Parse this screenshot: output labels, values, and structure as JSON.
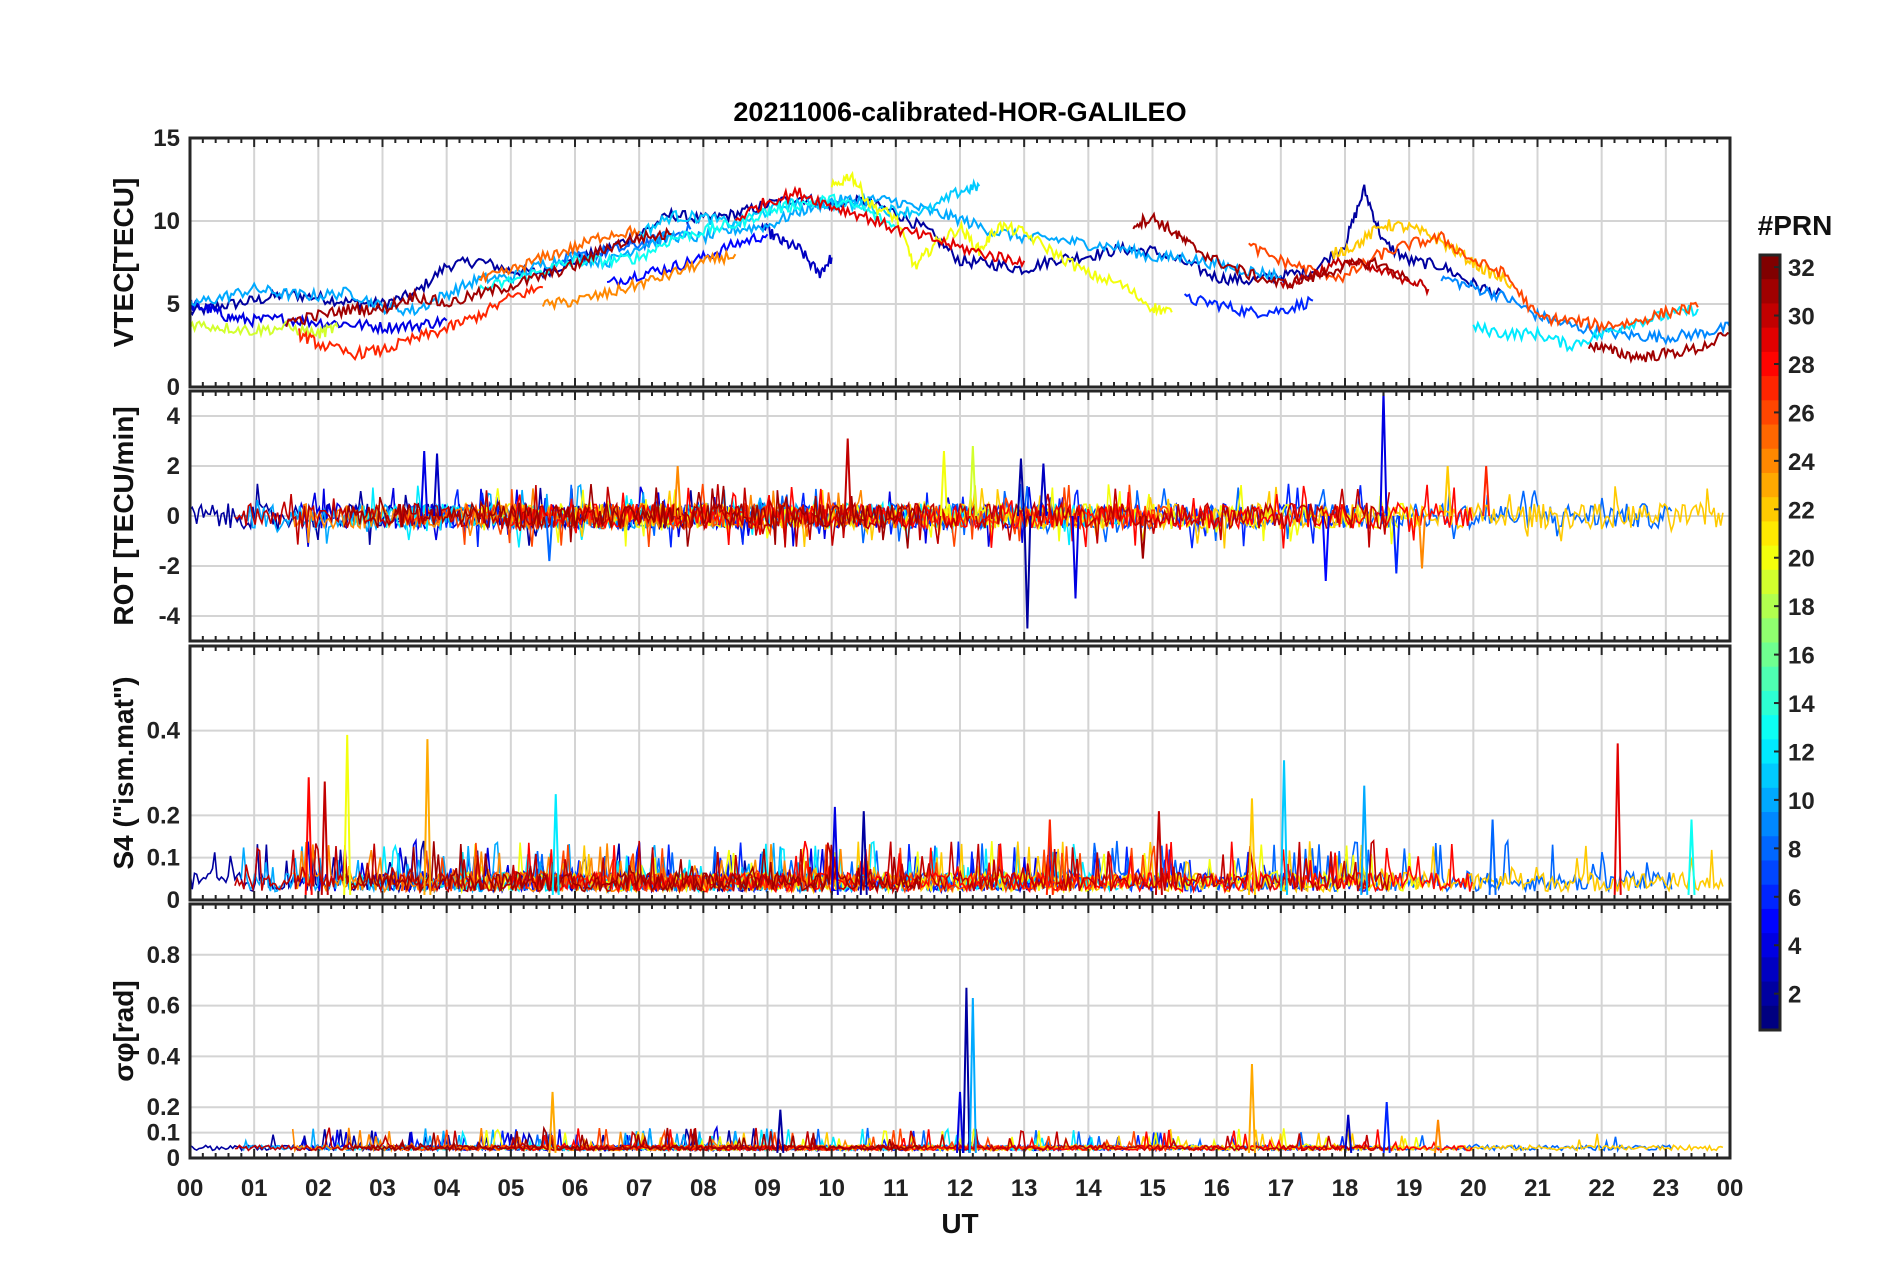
{
  "chart_data": {
    "type": "line",
    "title": "20211006-calibrated-HOR-GALILEO",
    "xlabel": "UT",
    "x_tick_labels": [
      "00",
      "01",
      "02",
      "03",
      "04",
      "05",
      "06",
      "07",
      "08",
      "09",
      "10",
      "11",
      "12",
      "13",
      "14",
      "15",
      "16",
      "17",
      "18",
      "19",
      "20",
      "21",
      "22",
      "23",
      "00"
    ],
    "xlim": [
      0,
      24
    ],
    "colorbar": {
      "title": "#PRN",
      "range": [
        1,
        32
      ],
      "tick_labels": [
        "2",
        "4",
        "6",
        "8",
        "10",
        "12",
        "14",
        "16",
        "18",
        "20",
        "22",
        "24",
        "26",
        "28",
        "30",
        "32"
      ],
      "colormap": "jet"
    },
    "panels": [
      {
        "ylabel": "VTEC[TECU]",
        "ylim": [
          0,
          15
        ],
        "ytick_labels": [
          "0",
          "5",
          "10",
          "15"
        ],
        "grid": true,
        "series": [
          {
            "prn": 2,
            "x": [
              0,
              0.5,
              1,
              1.5,
              2,
              2.5,
              3,
              3.5,
              4,
              4.5,
              5,
              5.5,
              6,
              6.5,
              7,
              7.5,
              8,
              8.5,
              9,
              9.5,
              10,
              10.5,
              11,
              11.5,
              12,
              12.5,
              13,
              13.5,
              14,
              14.5,
              15,
              15.5,
              16,
              16.5,
              17,
              17.5,
              18,
              18.3,
              18.6,
              19,
              19.5,
              20,
              20.5
            ],
            "y": [
              4.5,
              4.9,
              5.2,
              5.6,
              5.4,
              5.1,
              5.0,
              5.6,
              7.3,
              7.6,
              7.0,
              6.9,
              7.6,
              8.3,
              9.2,
              10.4,
              10.1,
              10.4,
              11.0,
              11.4,
              11.0,
              11.2,
              10.5,
              9.4,
              7.6,
              7.4,
              7.1,
              7.7,
              7.9,
              8.3,
              8.2,
              7.5,
              6.6,
              6.4,
              6.7,
              7.0,
              8.6,
              11.9,
              8.7,
              7.6,
              7.3,
              6.2,
              5.4
            ]
          },
          {
            "prn": 3,
            "x": [
              8.9,
              9.2,
              9.5,
              9.8,
              10.0
            ],
            "y": [
              9.7,
              8.8,
              8.3,
              6.8,
              7.8
            ]
          },
          {
            "prn": 4,
            "x": [
              0,
              0.3,
              0.6,
              1,
              1.5,
              2,
              2.5,
              3,
              3.5,
              4
            ],
            "y": [
              4.9,
              4.7,
              4.2,
              4.0,
              4.1,
              3.9,
              3.8,
              3.6,
              3.7,
              4.0
            ]
          },
          {
            "prn": 5,
            "x": [
              6.5,
              7,
              7.5,
              8,
              8.5,
              9
            ],
            "y": [
              6.2,
              6.8,
              7.2,
              7.8,
              8.6,
              9.2
            ]
          },
          {
            "prn": 6,
            "x": [
              15.5,
              16,
              16.5,
              17,
              17.5
            ],
            "y": [
              5.3,
              5.0,
              4.5,
              4.6,
              5.2
            ]
          },
          {
            "prn": 8,
            "x": [
              5.8,
              6.3,
              6.8,
              7.3,
              7.8
            ],
            "y": [
              7.7,
              8.0,
              8.4,
              8.9,
              9.5
            ]
          },
          {
            "prn": 9,
            "x": [
              19.5,
              20,
              20.5,
              21,
              21.5,
              22,
              22.5,
              23,
              23.5,
              24
            ],
            "y": [
              6.6,
              6.0,
              5.4,
              4.3,
              3.7,
              3.3,
              3.1,
              3.0,
              3.2,
              3.6
            ]
          },
          {
            "prn": 10,
            "x": [
              0,
              0.5,
              1,
              1.5,
              2,
              2.5,
              3,
              3.5,
              4,
              4.5,
              5,
              5.5,
              6,
              6.5,
              7,
              7.5,
              8,
              8.5,
              9,
              9.5,
              10,
              10.5,
              11,
              11.5,
              12,
              12.5,
              13,
              13.5,
              14,
              14.5,
              15,
              15.5,
              16,
              16.5,
              17
            ],
            "y": [
              5.0,
              5.4,
              5.9,
              5.6,
              5.5,
              5.7,
              4.8,
              4.6,
              5.6,
              6.5,
              6.6,
              7.4,
              7.8,
              7.5,
              8.5,
              9.1,
              9.0,
              9.5,
              9.7,
              10.6,
              11.2,
              11.3,
              11.2,
              10.6,
              10.1,
              9.4,
              9.0,
              8.9,
              8.6,
              8.4,
              7.8,
              7.8,
              7.4,
              7.0,
              6.7
            ]
          },
          {
            "prn": 11,
            "x": [
              7,
              7.5,
              8,
              8.5,
              9,
              9.5,
              10,
              10.5,
              11,
              11.5,
              12,
              12.3
            ],
            "y": [
              9.2,
              10.3,
              10.2,
              9.8,
              10.6,
              11.2,
              11.0,
              10.9,
              10.6,
              10.6,
              11.8,
              12.1
            ]
          },
          {
            "prn": 12,
            "x": [
              20,
              20.5,
              21,
              21.5,
              22,
              22.5,
              23,
              23.5
            ],
            "y": [
              3.6,
              3.2,
              3.2,
              2.5,
              3.2,
              3.9,
              4.3,
              4.7
            ]
          },
          {
            "prn": 13,
            "x": [
              4.5,
              5,
              5.5,
              6,
              6.5,
              7,
              7.5,
              8,
              8.5,
              9,
              9.5,
              10,
              10.5,
              11
            ],
            "y": [
              5.8,
              6.4,
              7.0,
              7.6,
              7.6,
              7.8,
              8.9,
              9.4,
              9.8,
              10.6,
              11.0,
              11.3,
              10.7,
              9.6
            ]
          },
          {
            "prn": 19,
            "x": [
              0,
              0.5,
              1,
              1.5,
              2,
              2.3
            ],
            "y": [
              3.8,
              3.6,
              3.4,
              3.6,
              3.2,
              3.6
            ]
          },
          {
            "prn": 20,
            "x": [
              10,
              10.3,
              10.6,
              11,
              11.3,
              11.6,
              12,
              12.3,
              12.6,
              13,
              13.5,
              14,
              14.5,
              15,
              15.3
            ],
            "y": [
              12.0,
              12.8,
              11.0,
              10.2,
              7.2,
              8.6,
              9.6,
              8.2,
              9.7,
              9.3,
              8.0,
              6.8,
              6.2,
              4.8,
              4.5
            ]
          },
          {
            "prn": 22,
            "x": [
              17.8,
              18.2,
              18.6,
              19,
              19.4,
              19.8,
              20.2,
              20.6
            ],
            "y": [
              8.0,
              8.6,
              9.8,
              9.6,
              9.0,
              8.0,
              7.0,
              6.2
            ]
          },
          {
            "prn": 24,
            "x": [
              5.5,
              6,
              6.5,
              7,
              7.5,
              8,
              8.5
            ],
            "y": [
              4.9,
              5.2,
              5.6,
              6.2,
              6.8,
              7.5,
              8.0
            ]
          },
          {
            "prn": 25,
            "x": [
              4.5,
              5,
              5.5,
              6,
              6.5,
              7
            ],
            "y": [
              6.4,
              7.0,
              7.8,
              8.4,
              9.2,
              9.4
            ]
          },
          {
            "prn": 26,
            "x": [
              16.5,
              17,
              17.5,
              18,
              18.5,
              19,
              19.5,
              20,
              20.5,
              21,
              21.5,
              22,
              22.5,
              23,
              23.5
            ],
            "y": [
              8.5,
              7.6,
              7.0,
              6.6,
              7.9,
              8.6,
              9.0,
              7.6,
              6.8,
              4.2,
              4.0,
              3.7,
              3.9,
              4.5,
              4.8
            ]
          },
          {
            "prn": 27,
            "x": [
              1.7,
              2,
              2.5,
              3,
              3.5,
              4,
              4.5,
              5,
              5.5
            ],
            "y": [
              3.2,
              2.6,
              2.0,
              2.2,
              2.9,
              3.5,
              4.3,
              5.4,
              6.0
            ]
          },
          {
            "prn": 29,
            "x": [
              8.5,
              9,
              9.5,
              10,
              10.5,
              11,
              11.5,
              12,
              12.5,
              13
            ],
            "y": [
              10.1,
              11.2,
              11.7,
              10.9,
              10.3,
              9.5,
              9.0,
              8.4,
              7.9,
              7.6
            ]
          },
          {
            "prn": 30,
            "x": [
              17,
              17.5,
              18,
              18.5,
              19,
              19.3
            ],
            "y": [
              6.0,
              6.8,
              7.6,
              7.0,
              6.5,
              5.9
            ]
          },
          {
            "prn": 31,
            "x": [
              1.5,
              2,
              2.5,
              3,
              3.5,
              4,
              4.5,
              5,
              5.5,
              6,
              6.5,
              7,
              7.5
            ],
            "y": [
              3.9,
              4.3,
              4.7,
              4.7,
              5.5,
              5.0,
              5.6,
              6.1,
              6.7,
              7.3,
              8.4,
              9.0,
              9.2
            ]
          },
          {
            "prn": 31,
            "x": [
              14.7,
              15,
              15.3,
              15.6,
              16,
              16.5,
              17,
              17.5,
              18,
              18.5,
              19
            ],
            "y": [
              9.8,
              10.2,
              9.4,
              8.5,
              7.6,
              6.8,
              6.2,
              6.6,
              7.3,
              7.5,
              6.4
            ]
          },
          {
            "prn": 31,
            "x": [
              21.8,
              22.2,
              22.6,
              23,
              23.5,
              24
            ],
            "y": [
              2.6,
              2.1,
              1.8,
              2.0,
              2.3,
              3.2
            ]
          }
        ]
      },
      {
        "ylabel": "ROT [TECU/min]",
        "ylim": [
          -5,
          5
        ],
        "ytick_labels": [
          "-4",
          "-2",
          "0",
          "2",
          "4"
        ],
        "grid": true,
        "spikes": [
          {
            "prn": 4,
            "x": 3.65,
            "y": 2.6
          },
          {
            "prn": 3,
            "x": 3.85,
            "y": 2.5
          },
          {
            "prn": 8,
            "x": 5.6,
            "y": -1.8
          },
          {
            "prn": 24,
            "x": 7.6,
            "y": 2.0
          },
          {
            "prn": 30,
            "x": 10.25,
            "y": 3.1
          },
          {
            "prn": 20,
            "x": 11.75,
            "y": 2.6
          },
          {
            "prn": 19,
            "x": 12.2,
            "y": 2.8
          },
          {
            "prn": 2,
            "x": 12.95,
            "y": 2.3
          },
          {
            "prn": 2,
            "x": 13.05,
            "y": -4.5
          },
          {
            "prn": 3,
            "x": 13.3,
            "y": 2.1
          },
          {
            "prn": 4,
            "x": 13.8,
            "y": -3.3
          },
          {
            "prn": 31,
            "x": 14.85,
            "y": -1.7
          },
          {
            "prn": 5,
            "x": 17.7,
            "y": -2.6
          },
          {
            "prn": 4,
            "x": 18.6,
            "y": 5.0
          },
          {
            "prn": 6,
            "x": 18.8,
            "y": -2.3
          },
          {
            "prn": 24,
            "x": 19.2,
            "y": -2.1
          },
          {
            "prn": 22,
            "x": 19.6,
            "y": 2.0
          },
          {
            "prn": 27,
            "x": 20.2,
            "y": 2.0
          }
        ]
      },
      {
        "ylabel": "S4 (\"ism.mat\")",
        "ylim": [
          0,
          0.6
        ],
        "ytick_labels": [
          "0",
          "0.1",
          "0.2",
          "0.4"
        ],
        "grid": true,
        "spikes": [
          {
            "prn": 28,
            "x": 1.85,
            "y": 0.29
          },
          {
            "prn": 30,
            "x": 2.1,
            "y": 0.28
          },
          {
            "prn": 20,
            "x": 2.45,
            "y": 0.39
          },
          {
            "prn": 23,
            "x": 3.7,
            "y": 0.38
          },
          {
            "prn": 12,
            "x": 5.7,
            "y": 0.25
          },
          {
            "prn": 4,
            "x": 10.05,
            "y": 0.22
          },
          {
            "prn": 2,
            "x": 10.5,
            "y": 0.21
          },
          {
            "prn": 27,
            "x": 13.4,
            "y": 0.19
          },
          {
            "prn": 30,
            "x": 15.1,
            "y": 0.21
          },
          {
            "prn": 22,
            "x": 16.55,
            "y": 0.24
          },
          {
            "prn": 11,
            "x": 17.05,
            "y": 0.33
          },
          {
            "prn": 10,
            "x": 18.3,
            "y": 0.27
          },
          {
            "prn": 8,
            "x": 20.3,
            "y": 0.19
          },
          {
            "prn": 29,
            "x": 22.25,
            "y": 0.37
          },
          {
            "prn": 13,
            "x": 23.4,
            "y": 0.19
          }
        ]
      },
      {
        "ylabel": "σφ[rad]",
        "ylim": [
          0,
          1
        ],
        "ytick_labels": [
          "0",
          "0.1",
          "0.2",
          "0.4",
          "0.6",
          "0.8"
        ],
        "grid": true,
        "spikes": [
          {
            "prn": 23,
            "x": 5.65,
            "y": 0.26
          },
          {
            "prn": 2,
            "x": 9.2,
            "y": 0.19
          },
          {
            "prn": 2,
            "x": 12.1,
            "y": 0.67
          },
          {
            "prn": 10,
            "x": 12.2,
            "y": 0.63
          },
          {
            "prn": 4,
            "x": 12.0,
            "y": 0.26
          },
          {
            "prn": 23,
            "x": 16.55,
            "y": 0.37
          },
          {
            "prn": 3,
            "x": 18.05,
            "y": 0.17
          },
          {
            "prn": 6,
            "x": 18.65,
            "y": 0.22
          },
          {
            "prn": 24,
            "x": 19.45,
            "y": 0.15
          }
        ]
      }
    ]
  }
}
